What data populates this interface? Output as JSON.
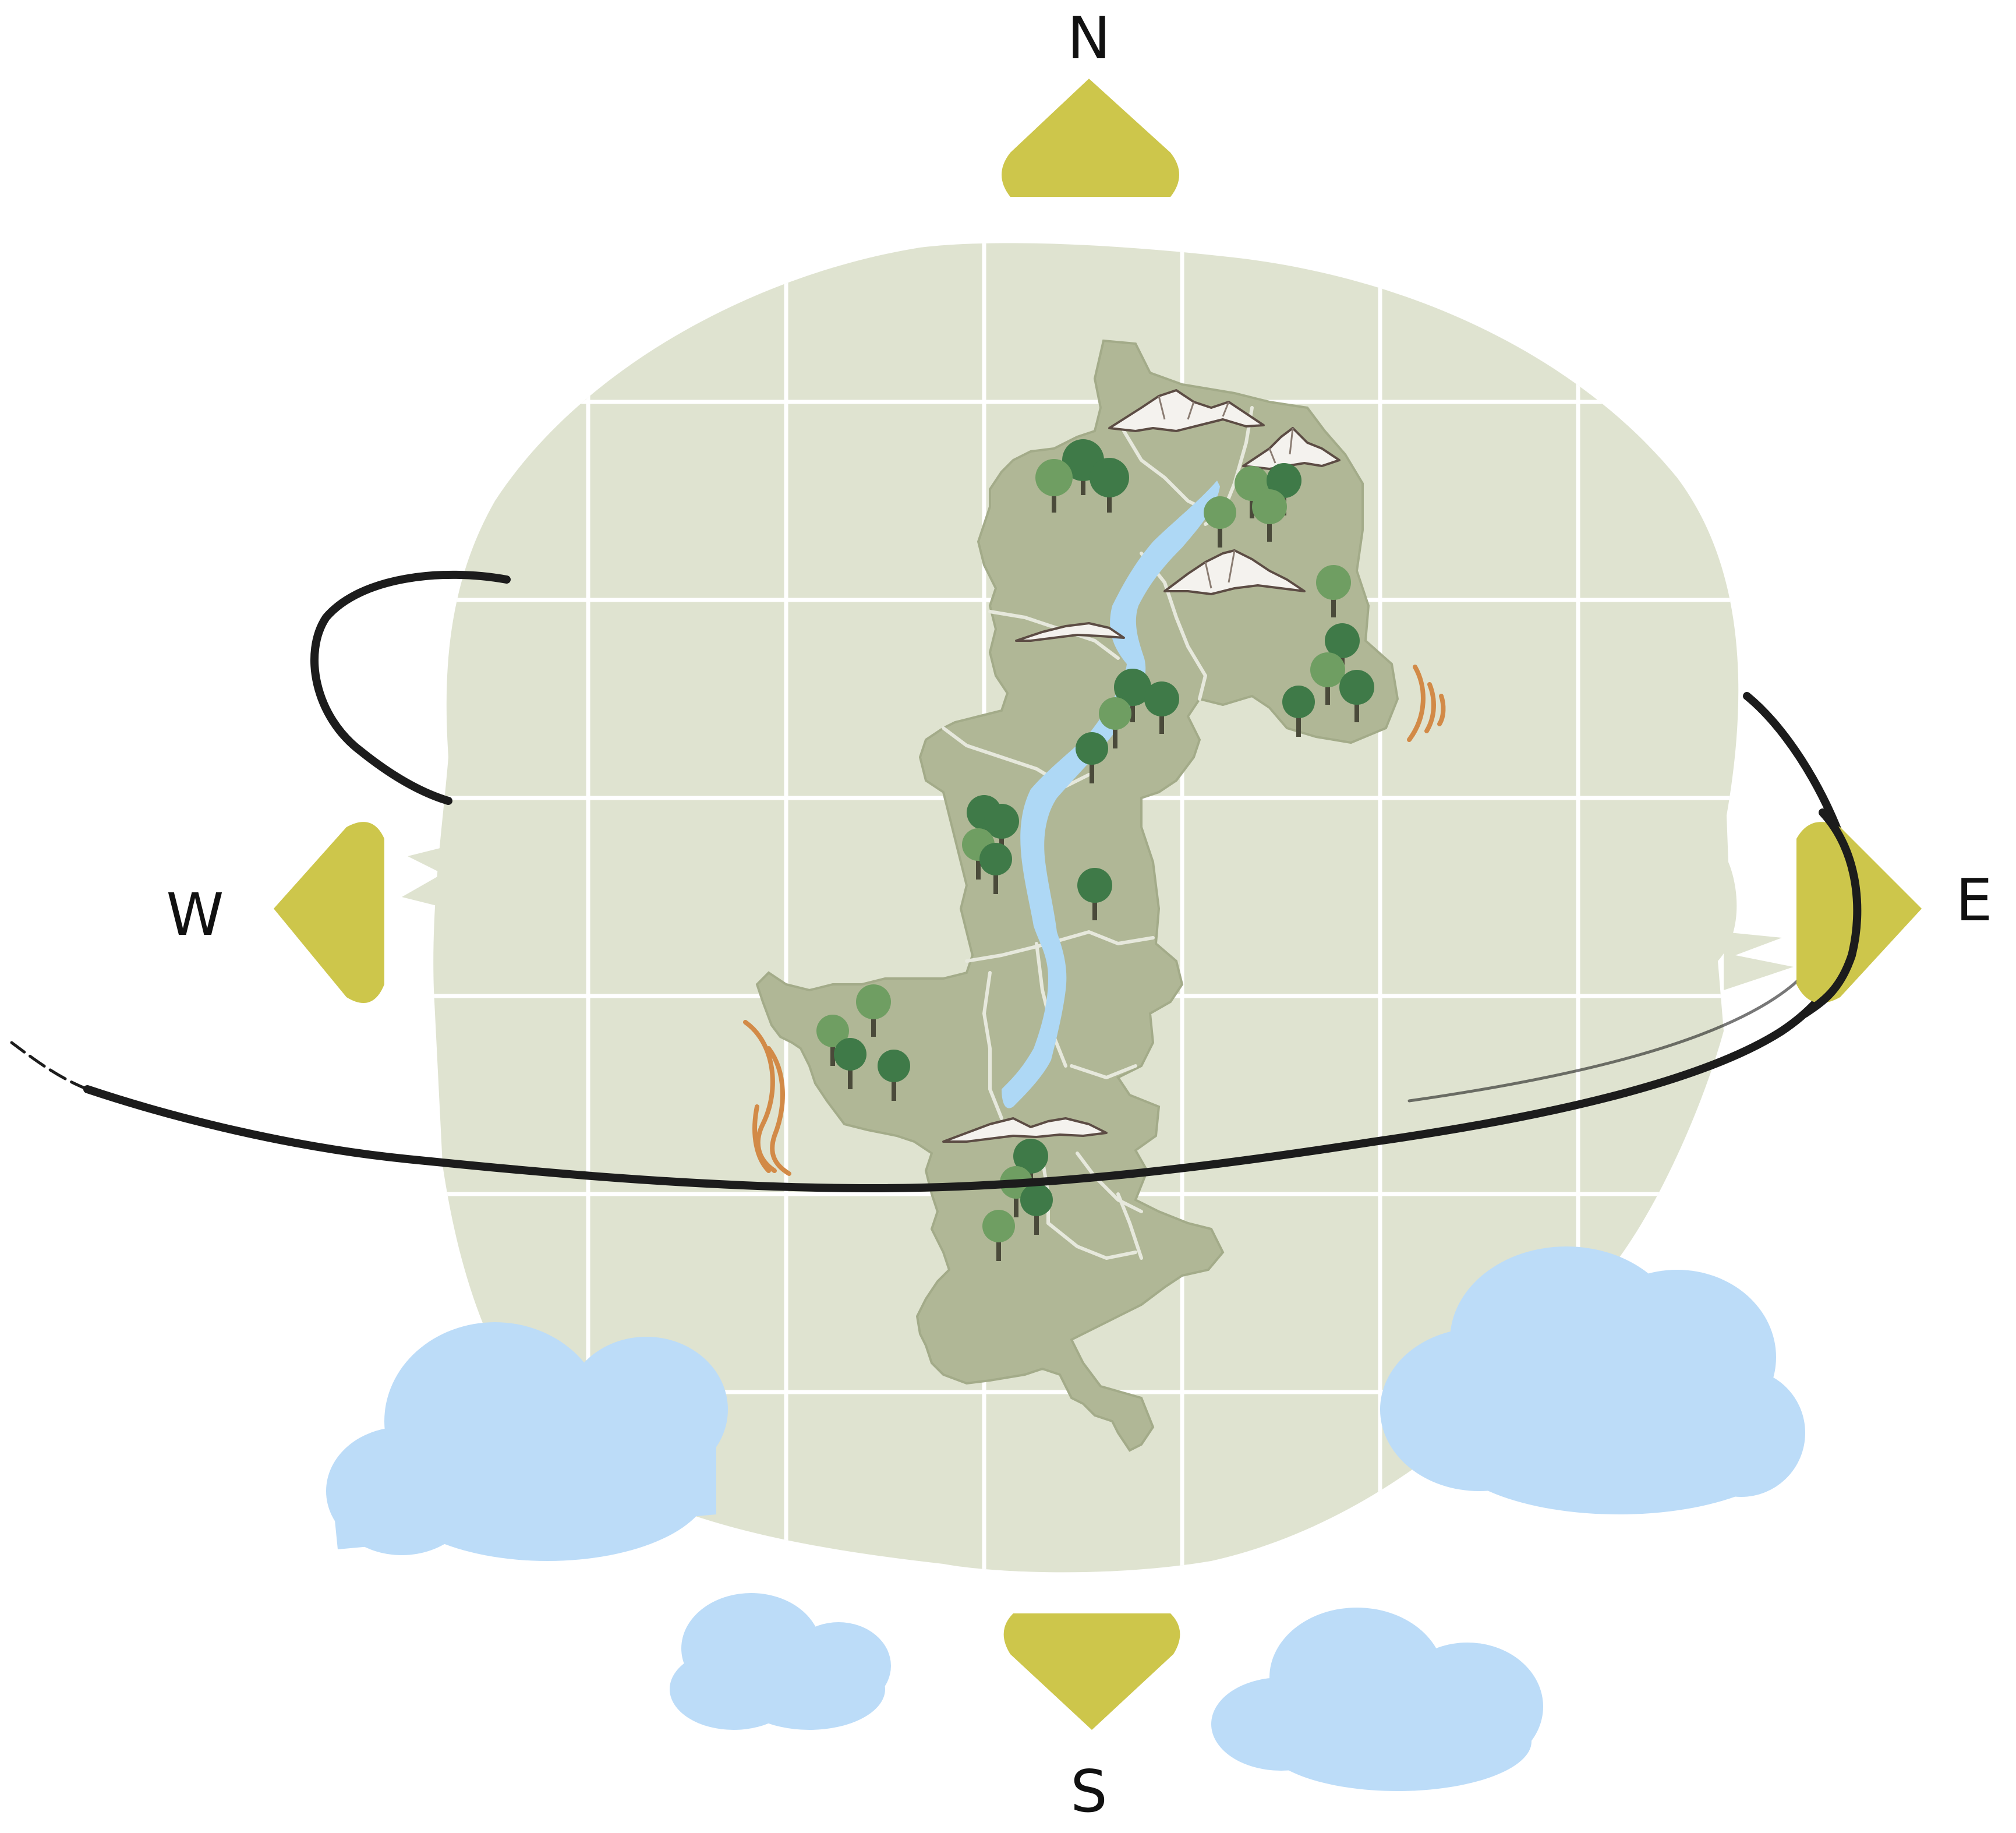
{
  "compass": {
    "north": "N",
    "south": "S",
    "east": "E",
    "west": "W"
  },
  "colors": {
    "disc": "#dfe3d0",
    "grid": "#ffffff",
    "land": "#b0b796",
    "land_edge": "#9ea685",
    "river": "#aed8f5",
    "border": "#e6e8dc",
    "tree_dark": "#3f7a48",
    "tree_light": "#6f9e62",
    "mountain": "#f4f2ee",
    "mountain_edge": "#6b5a50",
    "arrow": "#cdc64b",
    "cloud": "#bcdcf8",
    "wind": "#d28a47",
    "orbit": "#1c1c1c"
  },
  "icons": {
    "mountain": "mountain-icon",
    "tree": "tree-icon",
    "cloud": "cloud-icon",
    "wind": "wind-icon",
    "arrow": "triangle-arrow-icon"
  }
}
